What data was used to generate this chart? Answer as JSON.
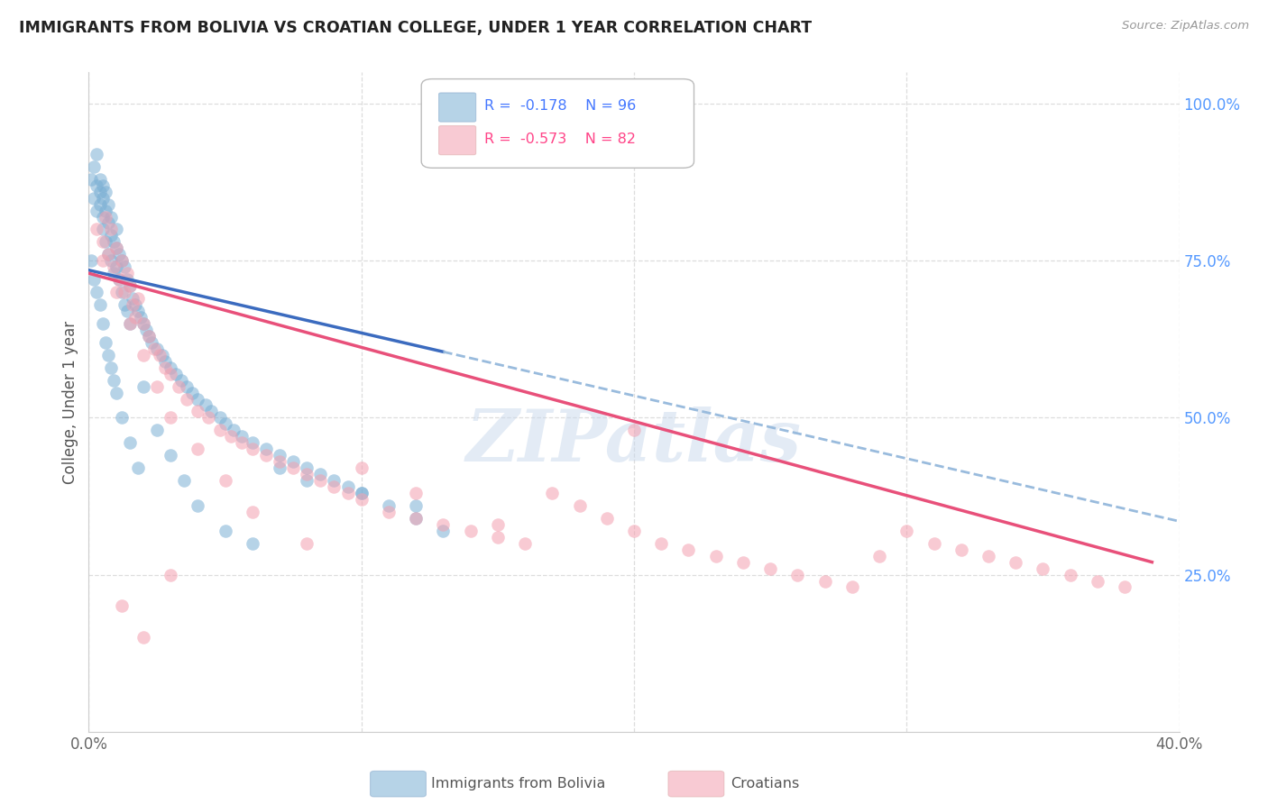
{
  "title": "IMMIGRANTS FROM BOLIVIA VS CROATIAN COLLEGE, UNDER 1 YEAR CORRELATION CHART",
  "source": "Source: ZipAtlas.com",
  "ylabel": "College, Under 1 year",
  "x_min": 0.0,
  "x_max": 0.4,
  "y_min": 0.0,
  "y_max": 1.05,
  "legend_r_bolivia": "-0.178",
  "legend_n_bolivia": "96",
  "legend_r_croatian": "-0.573",
  "legend_n_croatian": "82",
  "legend_label_bolivia": "Immigrants from Bolivia",
  "legend_label_croatian": "Croatians",
  "color_bolivia": "#7BAFD4",
  "color_croatian": "#F4A0B0",
  "color_trendline_bolivia_solid": "#3B6BBF",
  "color_trendline_bolivia_dash": "#99BBDD",
  "color_trendline_croatian": "#E8507A",
  "color_grid": "#DDDDDD",
  "color_title": "#222222",
  "color_right_axis": "#5599FF",
  "color_legend_r": "#4477FF",
  "color_legend_r2": "#FF4488",
  "watermark": "ZIPatlas",
  "bolivia_x": [
    0.001,
    0.002,
    0.002,
    0.003,
    0.003,
    0.003,
    0.004,
    0.004,
    0.004,
    0.005,
    0.005,
    0.005,
    0.005,
    0.006,
    0.006,
    0.006,
    0.007,
    0.007,
    0.007,
    0.008,
    0.008,
    0.008,
    0.009,
    0.009,
    0.01,
    0.01,
    0.01,
    0.011,
    0.011,
    0.012,
    0.012,
    0.013,
    0.013,
    0.014,
    0.014,
    0.015,
    0.015,
    0.016,
    0.017,
    0.018,
    0.019,
    0.02,
    0.021,
    0.022,
    0.023,
    0.025,
    0.027,
    0.028,
    0.03,
    0.032,
    0.034,
    0.036,
    0.038,
    0.04,
    0.043,
    0.045,
    0.048,
    0.05,
    0.053,
    0.056,
    0.06,
    0.065,
    0.07,
    0.075,
    0.08,
    0.085,
    0.09,
    0.095,
    0.1,
    0.11,
    0.12,
    0.13,
    0.001,
    0.002,
    0.003,
    0.004,
    0.005,
    0.006,
    0.007,
    0.008,
    0.009,
    0.01,
    0.012,
    0.015,
    0.018,
    0.02,
    0.025,
    0.03,
    0.035,
    0.04,
    0.05,
    0.06,
    0.07,
    0.08,
    0.1,
    0.12
  ],
  "bolivia_y": [
    0.88,
    0.9,
    0.85,
    0.87,
    0.83,
    0.92,
    0.84,
    0.88,
    0.86,
    0.82,
    0.85,
    0.87,
    0.8,
    0.83,
    0.86,
    0.78,
    0.81,
    0.84,
    0.76,
    0.79,
    0.82,
    0.75,
    0.78,
    0.73,
    0.77,
    0.8,
    0.74,
    0.76,
    0.72,
    0.75,
    0.7,
    0.74,
    0.68,
    0.72,
    0.67,
    0.71,
    0.65,
    0.69,
    0.68,
    0.67,
    0.66,
    0.65,
    0.64,
    0.63,
    0.62,
    0.61,
    0.6,
    0.59,
    0.58,
    0.57,
    0.56,
    0.55,
    0.54,
    0.53,
    0.52,
    0.51,
    0.5,
    0.49,
    0.48,
    0.47,
    0.46,
    0.45,
    0.44,
    0.43,
    0.42,
    0.41,
    0.4,
    0.39,
    0.38,
    0.36,
    0.34,
    0.32,
    0.75,
    0.72,
    0.7,
    0.68,
    0.65,
    0.62,
    0.6,
    0.58,
    0.56,
    0.54,
    0.5,
    0.46,
    0.42,
    0.55,
    0.48,
    0.44,
    0.4,
    0.36,
    0.32,
    0.3,
    0.42,
    0.4,
    0.38,
    0.36
  ],
  "croatian_x": [
    0.003,
    0.005,
    0.007,
    0.008,
    0.009,
    0.01,
    0.011,
    0.012,
    0.013,
    0.014,
    0.015,
    0.016,
    0.017,
    0.018,
    0.02,
    0.022,
    0.024,
    0.026,
    0.028,
    0.03,
    0.033,
    0.036,
    0.04,
    0.044,
    0.048,
    0.052,
    0.056,
    0.06,
    0.065,
    0.07,
    0.075,
    0.08,
    0.085,
    0.09,
    0.095,
    0.1,
    0.11,
    0.12,
    0.13,
    0.14,
    0.15,
    0.16,
    0.17,
    0.18,
    0.19,
    0.2,
    0.21,
    0.22,
    0.23,
    0.24,
    0.25,
    0.26,
    0.27,
    0.28,
    0.29,
    0.3,
    0.31,
    0.32,
    0.33,
    0.34,
    0.35,
    0.36,
    0.37,
    0.38,
    0.005,
    0.01,
    0.015,
    0.02,
    0.025,
    0.03,
    0.04,
    0.05,
    0.06,
    0.08,
    0.1,
    0.12,
    0.15,
    0.2,
    0.006,
    0.012,
    0.02,
    0.03
  ],
  "croatian_y": [
    0.8,
    0.78,
    0.76,
    0.8,
    0.74,
    0.77,
    0.72,
    0.75,
    0.7,
    0.73,
    0.71,
    0.68,
    0.66,
    0.69,
    0.65,
    0.63,
    0.61,
    0.6,
    0.58,
    0.57,
    0.55,
    0.53,
    0.51,
    0.5,
    0.48,
    0.47,
    0.46,
    0.45,
    0.44,
    0.43,
    0.42,
    0.41,
    0.4,
    0.39,
    0.38,
    0.37,
    0.35,
    0.34,
    0.33,
    0.32,
    0.31,
    0.3,
    0.38,
    0.36,
    0.34,
    0.32,
    0.3,
    0.29,
    0.28,
    0.27,
    0.26,
    0.25,
    0.24,
    0.23,
    0.28,
    0.32,
    0.3,
    0.29,
    0.28,
    0.27,
    0.26,
    0.25,
    0.24,
    0.23,
    0.75,
    0.7,
    0.65,
    0.6,
    0.55,
    0.5,
    0.45,
    0.4,
    0.35,
    0.3,
    0.42,
    0.38,
    0.33,
    0.48,
    0.82,
    0.2,
    0.15,
    0.25
  ],
  "trendline_b_x0": 0.0,
  "trendline_b_y0": 0.735,
  "trendline_b_x1": 0.13,
  "trendline_b_y1": 0.605,
  "trendline_b_dash_x0": 0.13,
  "trendline_b_dash_y0": 0.605,
  "trendline_b_dash_x1": 0.4,
  "trendline_b_dash_y1": 0.335,
  "trendline_c_x0": 0.0,
  "trendline_c_y0": 0.73,
  "trendline_c_x1": 0.39,
  "trendline_c_y1": 0.27
}
